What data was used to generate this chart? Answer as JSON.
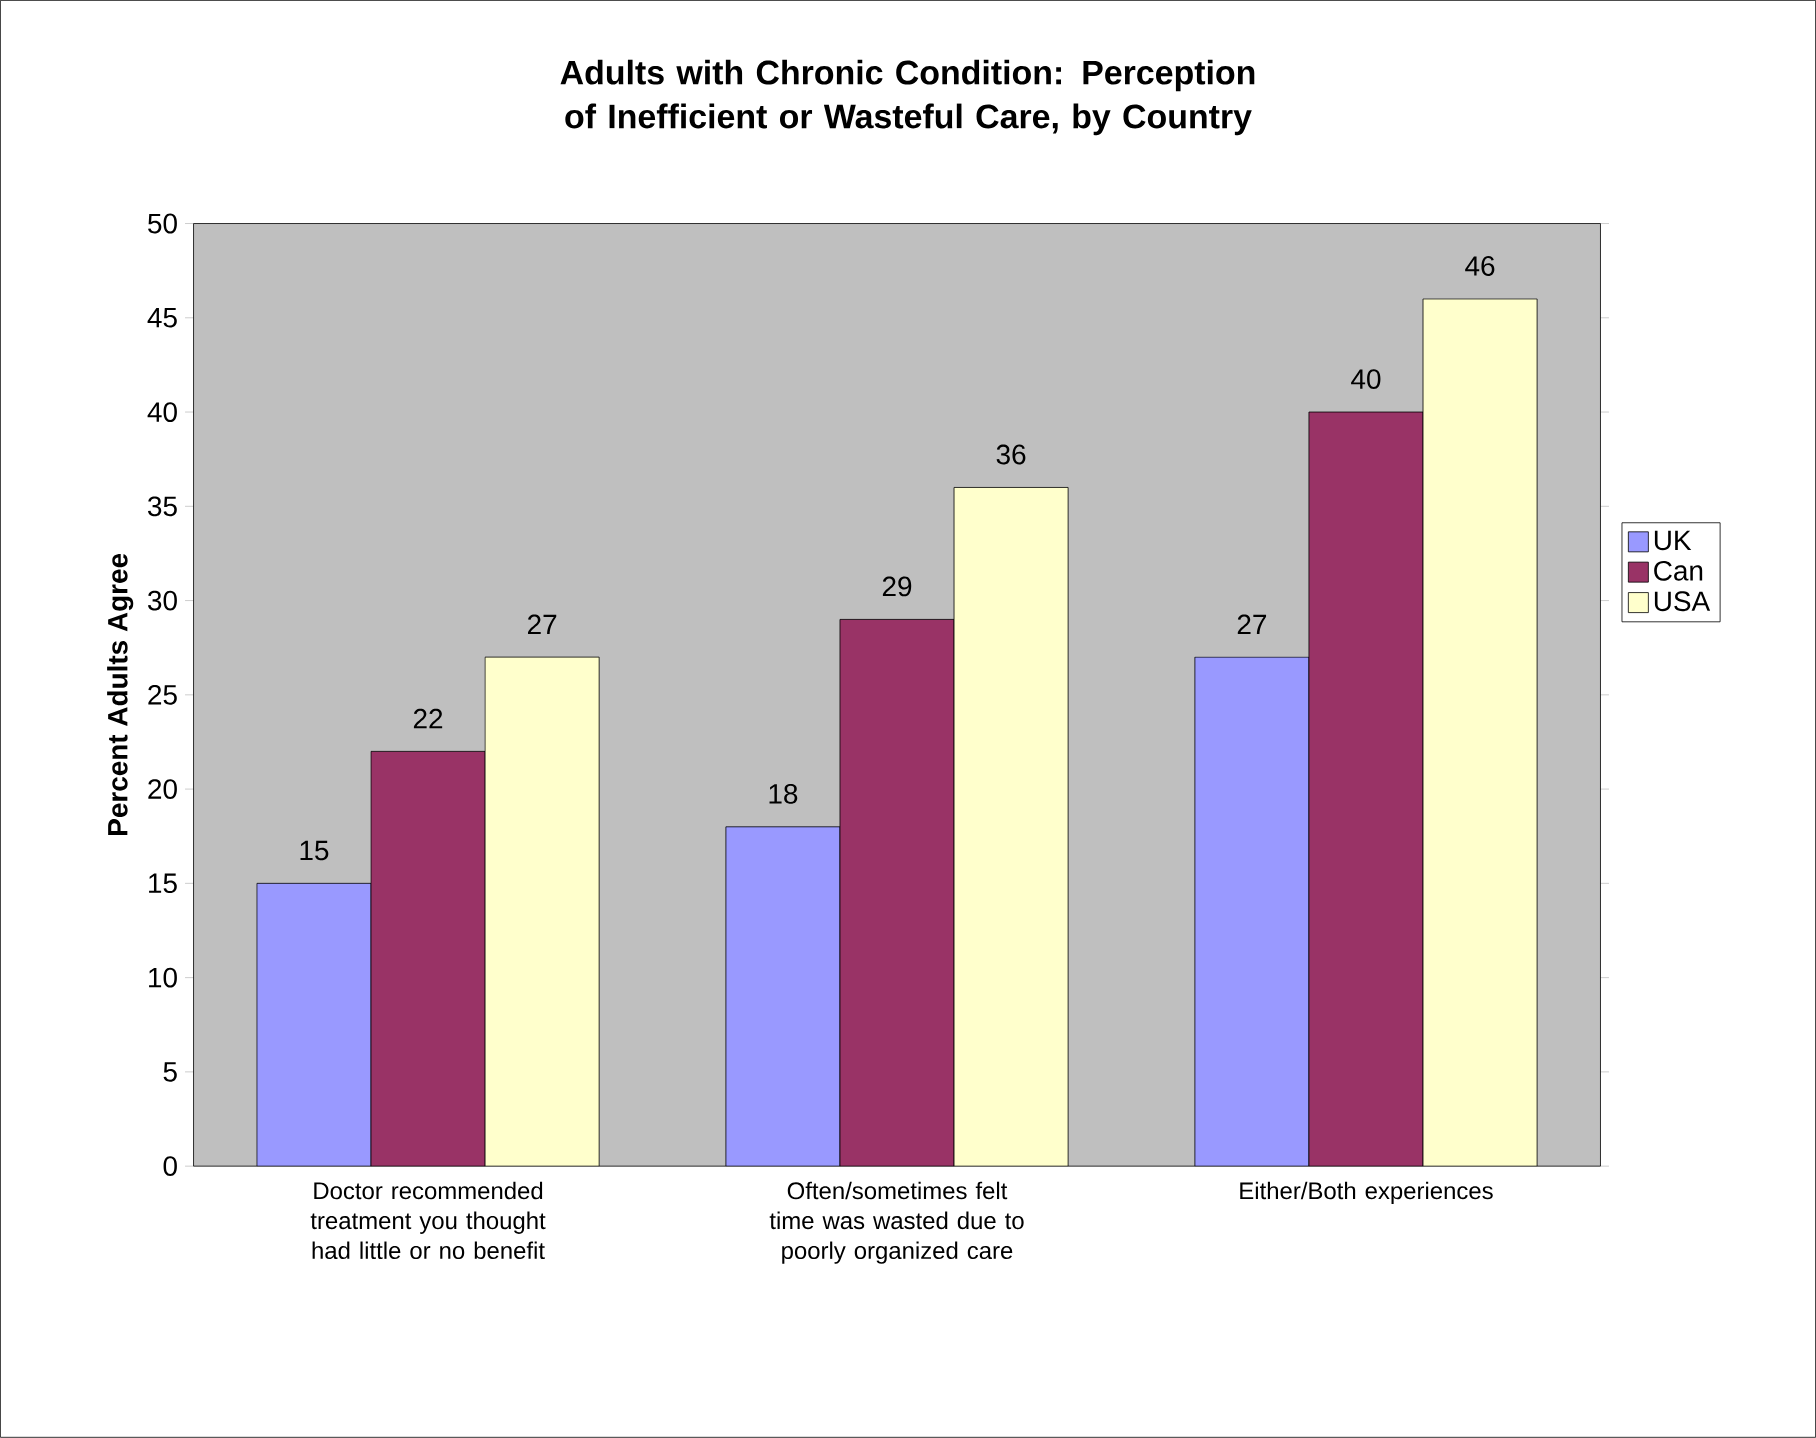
{
  "chart_data": {
    "type": "bar",
    "title": "Adults with Chronic Condition: Perception of Inefficient or Wasteful Care, by Country",
    "ylabel": "Percent Adults Agree",
    "categories": [
      "Doctor recommended treatment you thought had little or no benefit",
      "Often/sometimes felt time was wasted due to poorly organized care",
      "Either/Both experiences"
    ],
    "series": [
      {
        "name": "UK",
        "color": "#9999ff",
        "values": [
          15,
          18,
          27
        ]
      },
      {
        "name": "Can",
        "color": "#993366",
        "values": [
          22,
          29,
          40
        ]
      },
      {
        "name": "USA",
        "color": "#ffffcc",
        "values": [
          27,
          36,
          46
        ]
      }
    ],
    "ylim": [
      0,
      50
    ],
    "yticks": [
      0,
      5,
      10,
      15,
      20,
      25,
      30,
      35,
      40,
      45,
      50
    ],
    "legend": "right",
    "data_labels": true
  }
}
